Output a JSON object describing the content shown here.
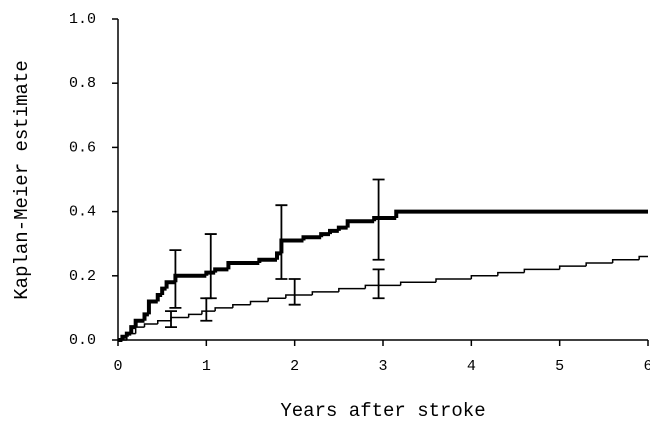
{
  "chart_data": {
    "type": "step",
    "x_label": "Years after stroke",
    "y_label": "Kaplan-Meier estimate",
    "xlim": [
      0,
      6
    ],
    "ylim": [
      0,
      1
    ],
    "xticks": [
      0,
      1,
      2,
      3,
      4,
      5,
      6
    ],
    "yticks": [
      {
        "value": 0,
        "label": "0.0"
      },
      {
        "value": 0.2,
        "label": "0.2"
      },
      {
        "value": 0.4,
        "label": "0.4"
      },
      {
        "value": 0.6,
        "label": "0.6"
      },
      {
        "value": 0.8,
        "label": "0.8"
      },
      {
        "value": 1,
        "label": "1.0"
      }
    ],
    "series": [
      {
        "color": "#000000",
        "width": 4,
        "x": [
          0,
          0.05,
          0.1,
          0.15,
          0.2,
          0.3,
          0.35,
          0.45,
          0.5,
          0.55,
          0.65,
          1.0,
          1.1,
          1.25,
          1.6,
          1.8,
          1.85,
          2.1,
          2.3,
          2.4,
          2.5,
          2.6,
          2.9,
          3.15,
          6
        ],
        "values": [
          0,
          0.01,
          0.02,
          0.04,
          0.06,
          0.08,
          0.12,
          0.14,
          0.16,
          0.18,
          0.2,
          0.21,
          0.22,
          0.24,
          0.25,
          0.27,
          0.31,
          0.32,
          0.33,
          0.34,
          0.35,
          0.37,
          0.38,
          0.4,
          0.4
        ],
        "ci_x": [
          0.65,
          1.05,
          1.85,
          2.95
        ],
        "ci_low": [
          0.1,
          0.13,
          0.19,
          0.25
        ],
        "ci_high": [
          0.28,
          0.33,
          0.42,
          0.5
        ]
      },
      {
        "color": "#000000",
        "width": 1.5,
        "x": [
          0,
          0.1,
          0.2,
          0.3,
          0.45,
          0.6,
          0.8,
          0.95,
          1.1,
          1.3,
          1.5,
          1.7,
          1.9,
          2.2,
          2.5,
          2.8,
          3.2,
          3.6,
          4.0,
          4.3,
          4.6,
          5.0,
          5.3,
          5.6,
          5.9,
          6
        ],
        "values": [
          0,
          0.02,
          0.04,
          0.05,
          0.06,
          0.07,
          0.08,
          0.09,
          0.1,
          0.11,
          0.12,
          0.13,
          0.14,
          0.15,
          0.16,
          0.17,
          0.18,
          0.19,
          0.2,
          0.21,
          0.22,
          0.23,
          0.24,
          0.25,
          0.26,
          0.26
        ],
        "ci_x": [
          0.6,
          1.0,
          2.0,
          2.95
        ],
        "ci_low": [
          0.04,
          0.06,
          0.11,
          0.13
        ],
        "ci_high": [
          0.09,
          0.13,
          0.19,
          0.22
        ]
      }
    ]
  }
}
